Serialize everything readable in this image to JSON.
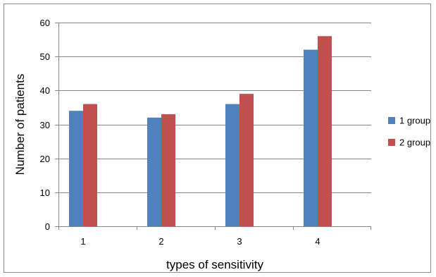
{
  "chart_data": {
    "type": "bar",
    "categories": [
      "1",
      "2",
      "3",
      "4"
    ],
    "series": [
      {
        "name": "1 group",
        "values": [
          34,
          32,
          36,
          52
        ],
        "color": "#4f81bd"
      },
      {
        "name": "2 group",
        "values": [
          36,
          33,
          39,
          56
        ],
        "color": "#c0504d"
      }
    ],
    "xlabel": "types of sensitivity",
    "ylabel": "Number of patients",
    "ylim": [
      0,
      60
    ],
    "yticks": [
      "0",
      "10",
      "20",
      "30",
      "40",
      "50",
      "60"
    ],
    "grid": true,
    "legend_position": "right",
    "gridline_color": "#868686"
  }
}
